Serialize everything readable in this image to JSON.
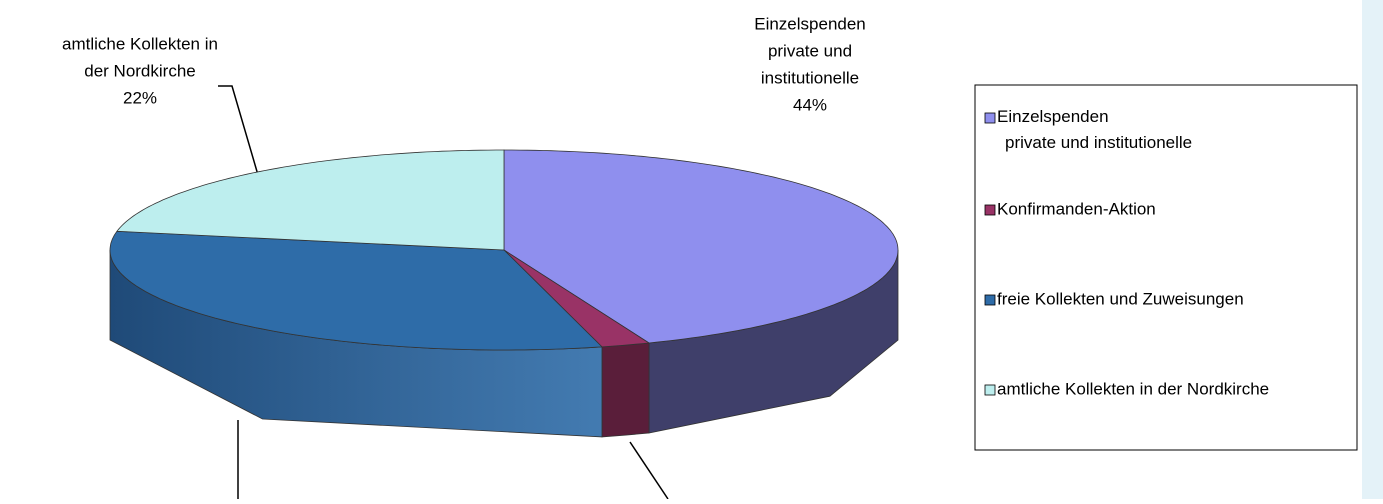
{
  "chart_data": {
    "type": "pie3d",
    "categories": [
      "Einzelspenden\nprivate und institutionelle",
      "Konfirmanden-Aktion",
      "freie Kollekten und Zuweisungen",
      "amtliche Kollekten in der Nordkirche"
    ],
    "values": [
      44,
      2,
      32,
      22
    ],
    "value_labels": [
      "44%",
      null,
      null,
      "22%"
    ],
    "pie_labels": [
      [
        "Einzelspenden",
        "private und",
        "institutionelle"
      ],
      null,
      null,
      [
        "amtliche Kollekten in",
        "der Nordkirche"
      ]
    ],
    "colors": [
      "#8f8fee",
      "#993366",
      "#2e6ca8",
      "#bdeeee"
    ],
    "side_colors": [
      "#3f3f6a",
      "#5a1e3a",
      "#1f4a78",
      "#7fb0b0"
    ],
    "legend": "right"
  }
}
